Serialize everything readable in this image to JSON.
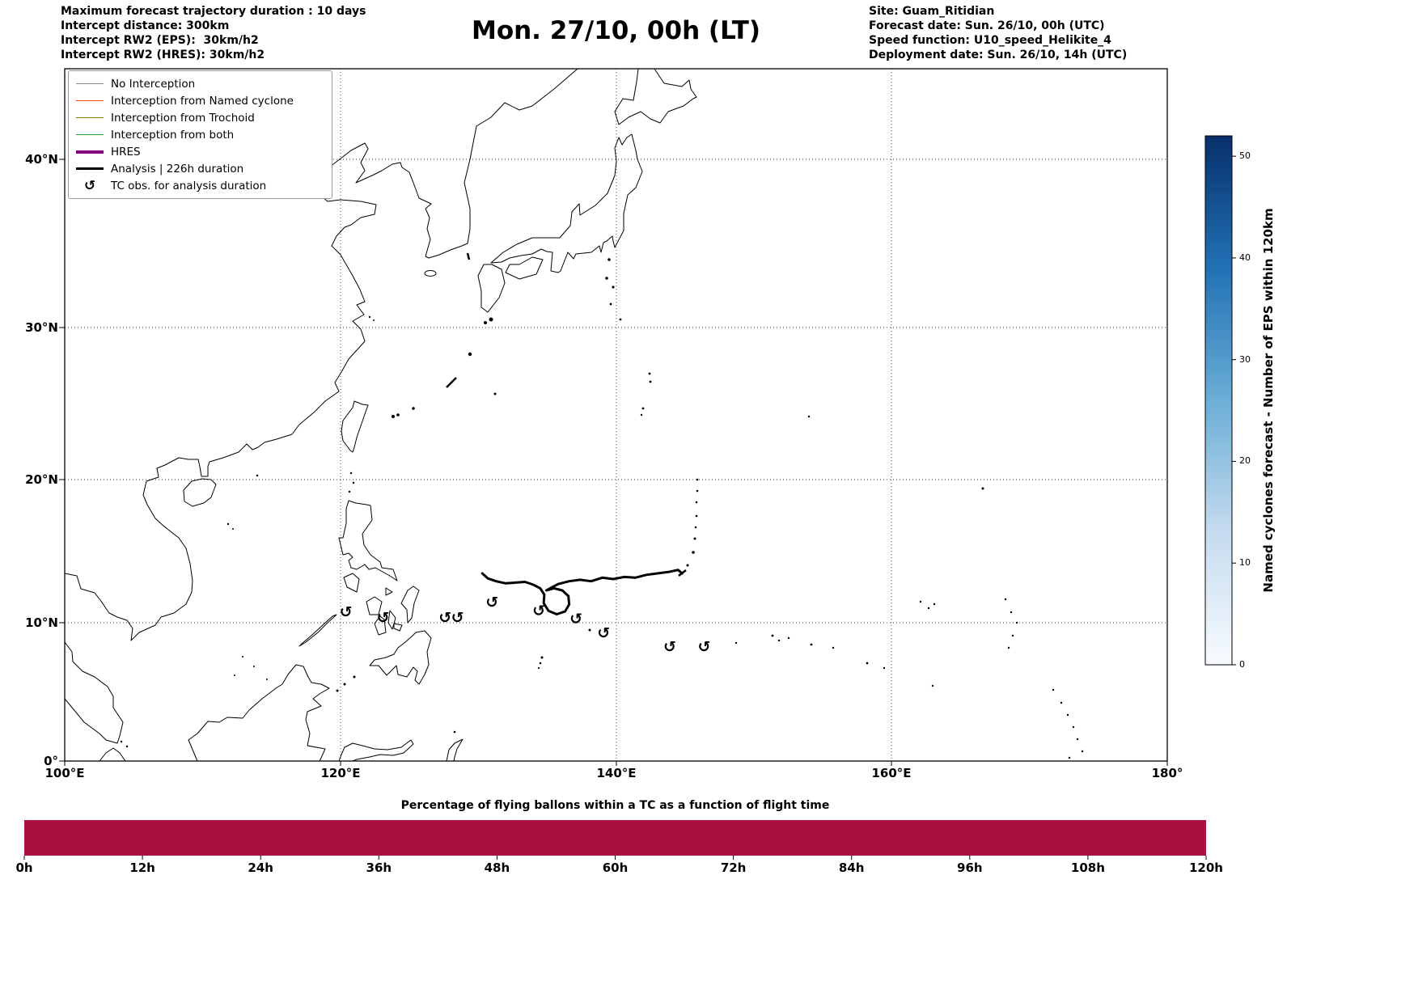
{
  "header": {
    "top_left": {
      "line1": "Maximum forecast trajectory duration : 10 days",
      "line2": "Intercept distance: 300km",
      "line3": "Intercept RW2 (EPS):  30km/h2",
      "line4": "Intercept RW2 (HRES): 30km/h2"
    },
    "title": "Mon. 27/10, 00h (LT)",
    "top_right": {
      "line1": "Site: Guam_Ritidian",
      "line2": "Forecast date: Sun. 26/10, 00h (UTC)",
      "line3": "Speed function: U10_speed_Helikite_4",
      "line4": "Deployment date: Sun. 26/10, 14h (UTC)"
    }
  },
  "map": {
    "x_tick_labels": [
      "100°E",
      "120°E",
      "140°E",
      "160°E",
      "180°"
    ],
    "y_tick_labels": [
      "0°",
      "10°N",
      "20°N",
      "30°N",
      "40°N"
    ],
    "legend": {
      "items": [
        {
          "label": "No Interception",
          "color": "#8a8a8a",
          "lw": 1.2
        },
        {
          "label": "Interception from Named cyclone",
          "color": "#ff4500",
          "lw": 1.6
        },
        {
          "label": "Interception from Trochoid",
          "color": "#808000",
          "lw": 1.6
        },
        {
          "label": "Interception from both",
          "color": "#2ca02c",
          "lw": 1.6
        },
        {
          "label": "HRES",
          "color": "#800080",
          "lw": 4
        },
        {
          "label": "Analysis | 226h duration",
          "color": "#000000",
          "lw": 3.5
        },
        {
          "label": "TC obs. for analysis duration",
          "symbol": "↺"
        }
      ]
    }
  },
  "colorbar": {
    "label": "Named cyclones forecast - Number of EPS within 120km",
    "ticks": [
      0,
      10,
      20,
      30,
      40,
      50
    ],
    "vmin": 0,
    "vmax": 52,
    "gradient_stops": [
      "#f7fbff",
      "#c6dbef",
      "#6baed6",
      "#2171b5",
      "#08306b"
    ]
  },
  "bottom_chart": {
    "title": "Percentage of flying ballons within a TC as a function of flight time",
    "x_tick_labels": [
      "0h",
      "12h",
      "24h",
      "36h",
      "48h",
      "60h",
      "72h",
      "84h",
      "96h",
      "108h",
      "120h"
    ]
  },
  "chart_data": [
    {
      "type": "line",
      "name": "analysis_trajectory",
      "series_label": "Analysis | 226h duration",
      "lon_range": [
        100,
        180
      ],
      "lat_range": [
        0,
        45
      ],
      "points_lon_lat": [
        [
          130.3,
          13.5
        ],
        [
          130.7,
          13.15
        ],
        [
          131.3,
          12.95
        ],
        [
          132.0,
          12.8
        ],
        [
          132.7,
          12.85
        ],
        [
          133.4,
          12.9
        ],
        [
          134.0,
          12.7
        ],
        [
          134.5,
          12.45
        ],
        [
          134.8,
          12.0
        ],
        [
          134.75,
          11.4
        ],
        [
          135.1,
          10.85
        ],
        [
          135.7,
          10.6
        ],
        [
          136.3,
          10.8
        ],
        [
          136.6,
          11.3
        ],
        [
          136.55,
          11.9
        ],
        [
          136.1,
          12.3
        ],
        [
          135.5,
          12.45
        ],
        [
          134.95,
          12.3
        ],
        [
          135.8,
          12.75
        ],
        [
          136.6,
          12.95
        ],
        [
          137.4,
          13.05
        ],
        [
          138.2,
          12.95
        ],
        [
          139.0,
          13.2
        ],
        [
          139.8,
          13.1
        ],
        [
          140.6,
          13.25
        ],
        [
          141.4,
          13.2
        ],
        [
          142.2,
          13.4
        ],
        [
          143.0,
          13.5
        ],
        [
          143.8,
          13.6
        ],
        [
          144.5,
          13.75
        ],
        [
          144.8,
          13.5
        ]
      ],
      "tc_obs_symbol": "↺",
      "tc_obs_lon_lat": [
        [
          120.4,
          10.8
        ],
        [
          123.1,
          10.4
        ],
        [
          127.6,
          10.4
        ],
        [
          128.5,
          10.4
        ],
        [
          131.0,
          11.5
        ],
        [
          134.4,
          10.9
        ],
        [
          137.1,
          10.3
        ],
        [
          139.1,
          9.3
        ],
        [
          143.9,
          8.3
        ],
        [
          146.4,
          8.3
        ]
      ]
    },
    {
      "type": "area",
      "name": "balloons_in_tc_percentage",
      "title": "Percentage of flying ballons within a TC as a function of flight time",
      "x_tick_labels": [
        "0h",
        "12h",
        "24h",
        "36h",
        "48h",
        "60h",
        "72h",
        "84h",
        "96h",
        "108h",
        "120h"
      ],
      "x_hours": [
        0,
        120
      ],
      "values_percent": [
        100,
        100
      ],
      "ylim": [
        0,
        100
      ],
      "fill_color": "#a8103e"
    },
    {
      "type": "colorbar",
      "name": "eps_within_120km",
      "label": "Named cyclones forecast - Number of EPS within 120km",
      "ticks": [
        0,
        10,
        20,
        30,
        40,
        50
      ],
      "range": [
        0,
        52
      ]
    }
  ]
}
